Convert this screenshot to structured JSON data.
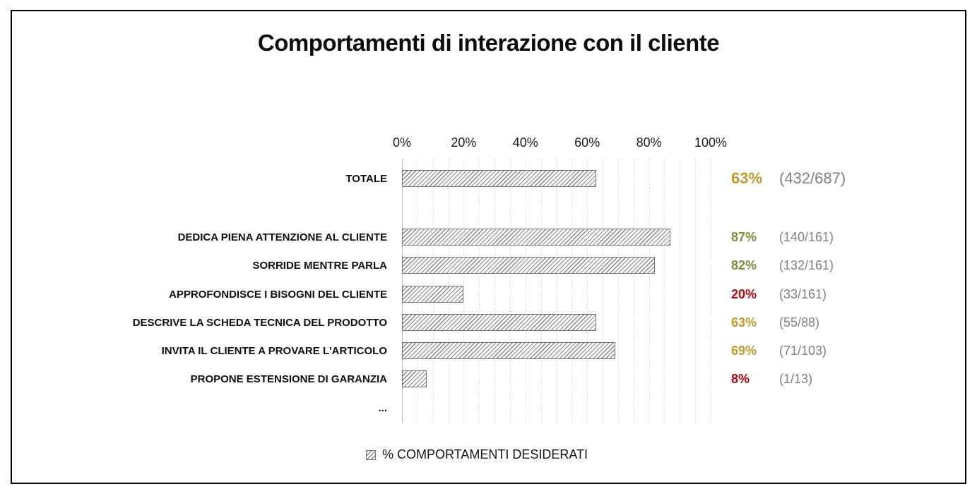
{
  "chart_data": {
    "type": "bar",
    "orientation": "horizontal",
    "title": "Comportamenti di interazione con il cliente",
    "xlabel": "",
    "ylabel": "",
    "xlim": [
      0,
      100
    ],
    "x_ticks": [
      "0%",
      "20%",
      "40%",
      "60%",
      "80%",
      "100%"
    ],
    "gridlines": "vertical dashed every 5%",
    "legend": {
      "swatch": "gray-diagonal-hatch",
      "label": "% COMPORTAMENTI DESIDERATI"
    },
    "rows": [
      {
        "label": "TOTALE",
        "value": 63,
        "value_label": "63%",
        "fraction": "(432/687)",
        "status": "gold",
        "emphasized": true
      },
      {
        "label": "DEDICA PIENA ATTENZIONE AL CLIENTE",
        "value": 87,
        "value_label": "87%",
        "fraction": "(140/161)",
        "status": "green",
        "emphasized": false
      },
      {
        "label": "SORRIDE MENTRE PARLA",
        "value": 82,
        "value_label": "82%",
        "fraction": "(132/161)",
        "status": "green",
        "emphasized": false
      },
      {
        "label": "APPROFONDISCE I BISOGNI DEL CLIENTE",
        "value": 20,
        "value_label": "20%",
        "fraction": "(33/161)",
        "status": "red",
        "emphasized": false
      },
      {
        "label": "DESCRIVE LA SCHEDA TECNICA DEL PRODOTTO",
        "value": 63,
        "value_label": "63%",
        "fraction": "(55/88)",
        "status": "gold",
        "emphasized": false
      },
      {
        "label": "INVITA IL CLIENTE A PROVARE L'ARTICOLO",
        "value": 69,
        "value_label": "69%",
        "fraction": "(71/103)",
        "status": "gold",
        "emphasized": false
      },
      {
        "label": "PROPONE ESTENSIONE DI GARANZIA",
        "value": 8,
        "value_label": "8%",
        "fraction": "(1/13)",
        "status": "red",
        "emphasized": false
      },
      {
        "label": "...",
        "value": null,
        "value_label": "",
        "fraction": "",
        "status": null,
        "emphasized": false
      }
    ],
    "colors": {
      "gold": "#C09A2E",
      "green": "#76923C",
      "red": "#B0060F",
      "fraction_gray": "#808080",
      "bar_hatch": "#878787",
      "bar_border": "#757575",
      "gridline": "#E4E4E4",
      "axis_line": "#C3C3C3"
    }
  }
}
